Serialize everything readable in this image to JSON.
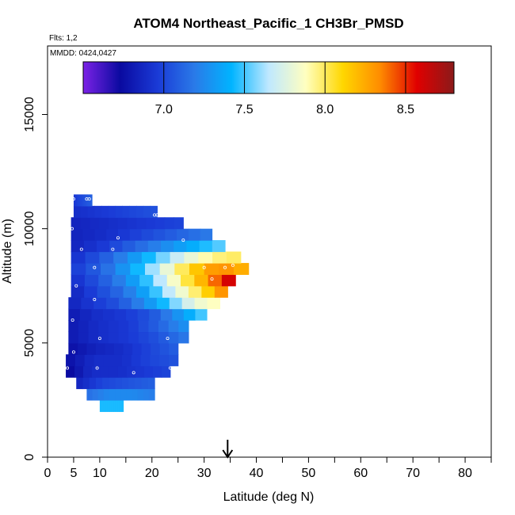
{
  "chart_data": {
    "type": "heatmap",
    "title": "ATOM4 Northeast_Pacific_1 CH3Br_PMSD",
    "annotations": [
      "Flts: 1,2",
      "MMDD: 0424,0427"
    ],
    "xlabel": "Latitude (deg N)",
    "ylabel": "Altitude (m)",
    "xlim": [
      0,
      85
    ],
    "ylim": [
      0,
      18000
    ],
    "x_ticks": [
      0,
      5,
      10,
      20,
      30,
      40,
      50,
      60,
      70,
      80
    ],
    "y_ticks": [
      0,
      5000,
      10000,
      15000
    ],
    "colorbar": {
      "range": [
        6.5,
        8.8
      ],
      "ticks": [
        7.0,
        7.5,
        8.0,
        8.5
      ],
      "tick_labels": [
        "7.0",
        "7.5",
        "8.0",
        "8.5"
      ],
      "colors": [
        "#7b22e6",
        "#0a0aa0",
        "#1a3ad6",
        "#2a7ae8",
        "#00b4ff",
        "#bfe8ff",
        "#ffffc0",
        "#ffd700",
        "#ff8c00",
        "#e00000",
        "#8b1a1a"
      ]
    },
    "marker": {
      "x": 34.5,
      "label": "arrow"
    },
    "rows": [
      {
        "y": [
          2000,
          2500
        ],
        "x": [
          10,
          14.5
        ],
        "vals": [
          7.45,
          7.45,
          7.45
        ]
      },
      {
        "y": [
          2500,
          3000
        ],
        "x": [
          7.5,
          20.5
        ],
        "vals": [
          7.15,
          7.25,
          7.25,
          7.2
        ]
      },
      {
        "y": [
          3000,
          3500
        ],
        "x": [
          5.5,
          20.5
        ],
        "vals": [
          6.85,
          7.0,
          7.05,
          7.1
        ]
      },
      {
        "y": [
          3500,
          4000
        ],
        "x": [
          3.5,
          23.5
        ],
        "vals": [
          6.7,
          6.9,
          6.9,
          6.95,
          7.0
        ]
      },
      {
        "y": [
          4000,
          4500
        ],
        "x": [
          3.5,
          25
        ],
        "vals": [
          6.75,
          6.9,
          6.9,
          7.0,
          7.05
        ]
      },
      {
        "y": [
          4500,
          5000
        ],
        "x": [
          4,
          25
        ],
        "vals": [
          6.75,
          6.85,
          6.9,
          7.0,
          7.1
        ]
      },
      {
        "y": [
          5000,
          5500
        ],
        "x": [
          4,
          27
        ],
        "vals": [
          6.8,
          6.9,
          6.95,
          7.05,
          7.2
        ]
      },
      {
        "y": [
          5500,
          6000
        ],
        "x": [
          4,
          27
        ],
        "vals": [
          6.8,
          6.9,
          6.95,
          7.1,
          7.3
        ]
      },
      {
        "y": [
          6000,
          6500
        ],
        "x": [
          4,
          30.5
        ],
        "vals": [
          6.8,
          6.9,
          6.95,
          7.05,
          7.3,
          7.55
        ]
      },
      {
        "y": [
          6500,
          7000
        ],
        "x": [
          4,
          33
        ],
        "vals": [
          6.85,
          6.95,
          7.05,
          7.25,
          7.5,
          7.8,
          7.9
        ]
      },
      {
        "y": [
          7000,
          7500
        ],
        "x": [
          4.5,
          34.5
        ],
        "vals": [
          6.85,
          7.0,
          7.15,
          7.4,
          7.75,
          8.05,
          8.4
        ]
      },
      {
        "y": [
          7500,
          8000
        ],
        "x": [
          4.5,
          36
        ],
        "vals": [
          6.9,
          7.05,
          7.25,
          7.55,
          7.95,
          8.3,
          8.7
        ]
      },
      {
        "y": [
          8000,
          8500
        ],
        "x": [
          4.5,
          38.5
        ],
        "vals": [
          6.95,
          7.1,
          7.35,
          7.7,
          8.1,
          8.35,
          8.2
        ]
      },
      {
        "y": [
          8500,
          9000
        ],
        "x": [
          4.5,
          37
        ],
        "vals": [
          6.9,
          7.05,
          7.25,
          7.5,
          7.75,
          7.95,
          8.0
        ]
      },
      {
        "y": [
          9000,
          9500
        ],
        "x": [
          4.5,
          34
        ],
        "vals": [
          6.85,
          6.95,
          7.1,
          7.25,
          7.4,
          7.55
        ]
      },
      {
        "y": [
          9500,
          10000
        ],
        "x": [
          4.5,
          31.5
        ],
        "vals": [
          6.85,
          6.9,
          7.0,
          7.1,
          7.2
        ]
      },
      {
        "y": [
          10000,
          10500
        ],
        "x": [
          4.5,
          26
        ],
        "vals": [
          6.85,
          6.9,
          6.95,
          7.0
        ]
      },
      {
        "y": [
          10500,
          11000
        ],
        "x": [
          5,
          21
        ],
        "vals": [
          6.9,
          6.95,
          7.0,
          7.05
        ]
      },
      {
        "y": [
          11000,
          11500
        ],
        "x": [
          5,
          8.5
        ],
        "vals": [
          6.95,
          7.1
        ]
      }
    ],
    "sample_points": [
      [
        5,
        11300
      ],
      [
        7.5,
        11300
      ],
      [
        8,
        11300
      ],
      [
        20.5,
        10600
      ],
      [
        21,
        10600
      ],
      [
        4.7,
        10000
      ],
      [
        13.5,
        9600
      ],
      [
        26,
        9500
      ],
      [
        6.5,
        9100
      ],
      [
        12.5,
        9100
      ],
      [
        9,
        8300
      ],
      [
        30,
        8300
      ],
      [
        34,
        8300
      ],
      [
        35.5,
        8400
      ],
      [
        31.5,
        7800
      ],
      [
        5.5,
        7500
      ],
      [
        9,
        6900
      ],
      [
        4.8,
        6000
      ],
      [
        10,
        5200
      ],
      [
        23,
        5200
      ],
      [
        5,
        4600
      ],
      [
        3.8,
        3900
      ],
      [
        9.5,
        3900
      ],
      [
        16.5,
        3700
      ],
      [
        23.5,
        3900
      ]
    ]
  }
}
